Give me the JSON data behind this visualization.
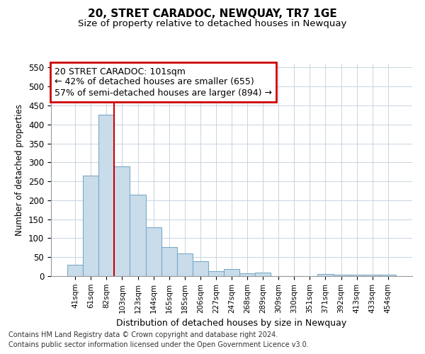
{
  "title": "20, STRET CARADOC, NEWQUAY, TR7 1GE",
  "subtitle": "Size of property relative to detached houses in Newquay",
  "xlabel": "Distribution of detached houses by size in Newquay",
  "ylabel": "Number of detached properties",
  "categories": [
    "41sqm",
    "61sqm",
    "82sqm",
    "103sqm",
    "123sqm",
    "144sqm",
    "165sqm",
    "185sqm",
    "206sqm",
    "227sqm",
    "247sqm",
    "268sqm",
    "289sqm",
    "309sqm",
    "330sqm",
    "351sqm",
    "371sqm",
    "392sqm",
    "413sqm",
    "433sqm",
    "454sqm"
  ],
  "values": [
    30,
    265,
    425,
    290,
    215,
    128,
    76,
    59,
    40,
    13,
    19,
    8,
    10,
    0,
    0,
    0,
    5,
    4,
    3,
    4,
    4
  ],
  "bar_color": "#c9dcea",
  "bar_edge_color": "#7aaac8",
  "vline_x_index": 3,
  "vline_color": "#cc0000",
  "annotation_text": "20 STRET CARADOC: 101sqm\n← 42% of detached houses are smaller (655)\n57% of semi-detached houses are larger (894) →",
  "annotation_box_color": "#ffffff",
  "annotation_box_edge_color": "#cc0000",
  "ylim": [
    0,
    560
  ],
  "yticks": [
    0,
    50,
    100,
    150,
    200,
    250,
    300,
    350,
    400,
    450,
    500,
    550
  ],
  "footer_line1": "Contains HM Land Registry data © Crown copyright and database right 2024.",
  "footer_line2": "Contains public sector information licensed under the Open Government Licence v3.0.",
  "bg_color": "#ffffff",
  "plot_bg_color": "#ffffff",
  "grid_color": "#c8d4e0"
}
